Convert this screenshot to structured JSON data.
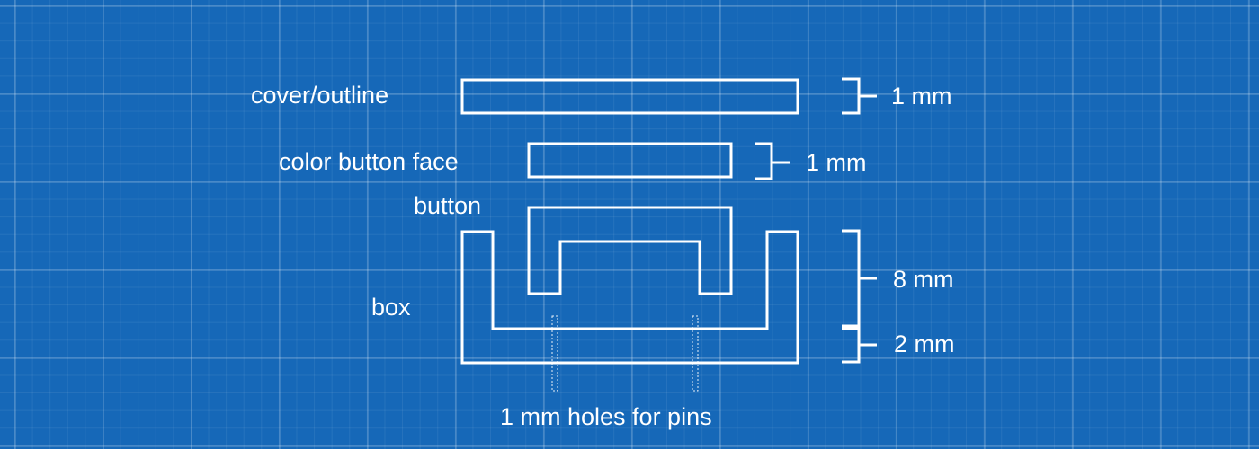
{
  "colors": {
    "background": "#1668b8",
    "line": "#ffffff"
  },
  "labels": {
    "cover": "cover/outline",
    "color_face": "color button face",
    "button": "button",
    "box": "box",
    "holes": "1 mm holes for pins"
  },
  "dimensions": {
    "cover": "1 mm",
    "color_face": "1 mm",
    "box_height": "8 mm",
    "box_base": "2 mm"
  }
}
